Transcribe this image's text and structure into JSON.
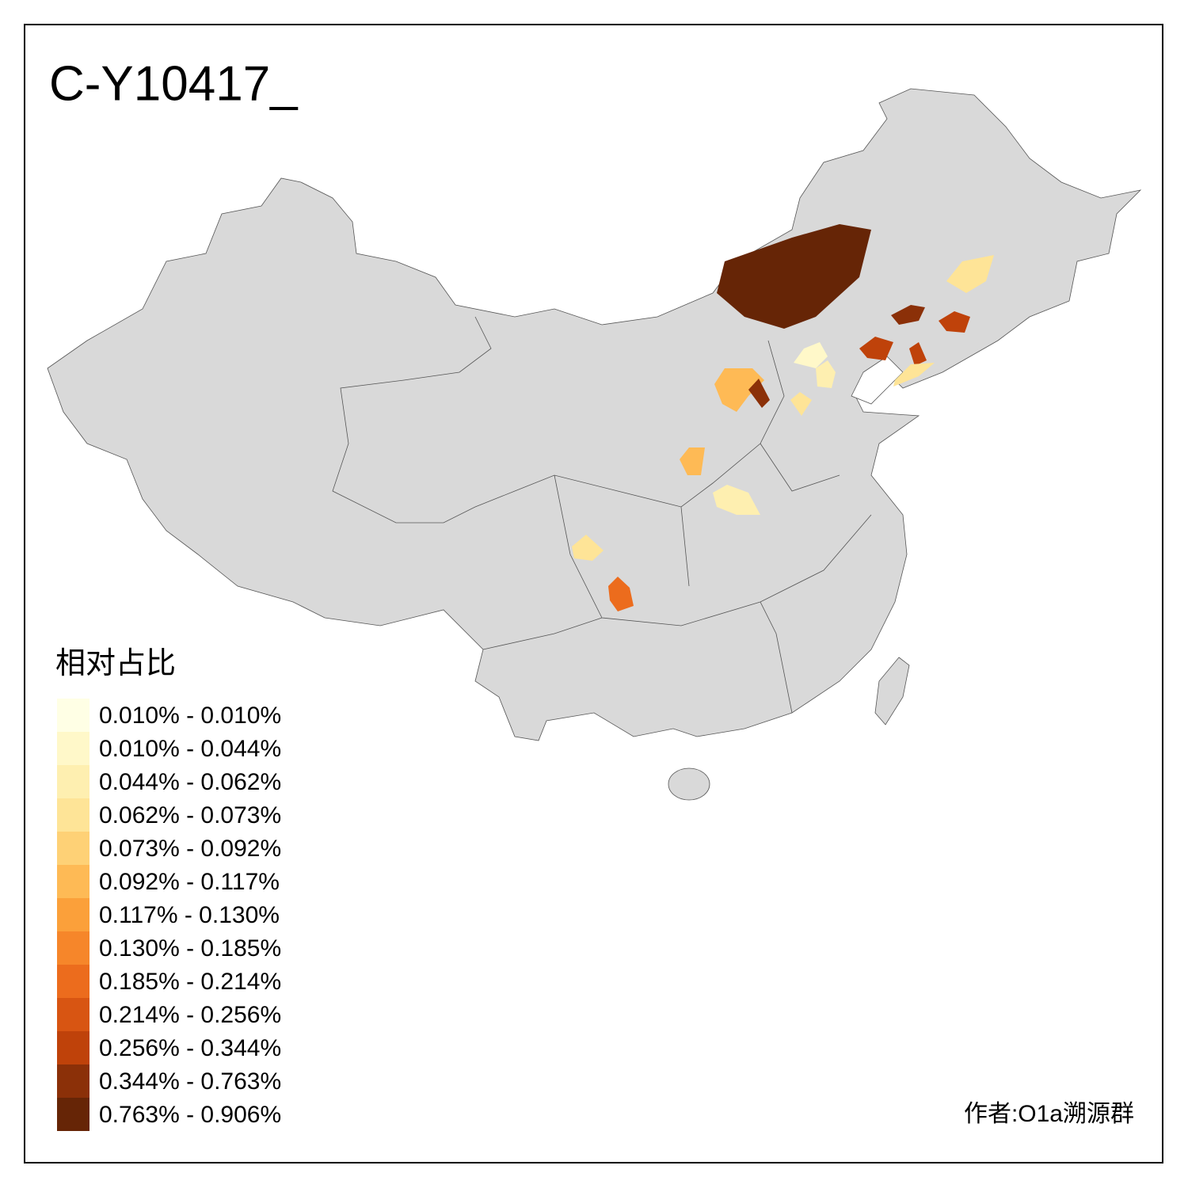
{
  "title": "C-Y10417_",
  "legend": {
    "title": "相对占比",
    "items": [
      {
        "label": "0.010% - 0.010%",
        "color": "#FFFFE5"
      },
      {
        "label": "0.010% - 0.044%",
        "color": "#FFF8C9"
      },
      {
        "label": "0.044% - 0.062%",
        "color": "#FEEFB0"
      },
      {
        "label": "0.062% - 0.073%",
        "color": "#FEE497"
      },
      {
        "label": "0.073% - 0.092%",
        "color": "#FED176"
      },
      {
        "label": "0.092% - 0.117%",
        "color": "#FEBA55"
      },
      {
        "label": "0.117% - 0.130%",
        "color": "#FBA03A"
      },
      {
        "label": "0.130% - 0.185%",
        "color": "#F6862A"
      },
      {
        "label": "0.185% - 0.214%",
        "color": "#EC6C1D"
      },
      {
        "label": "0.214% - 0.256%",
        "color": "#D85512"
      },
      {
        "label": "0.256% - 0.344%",
        "color": "#BF420A"
      },
      {
        "label": "0.344% - 0.763%",
        "color": "#8B3008"
      },
      {
        "label": "0.763% - 0.906%",
        "color": "#662506"
      }
    ]
  },
  "author": "作者:O1a溯源群"
}
